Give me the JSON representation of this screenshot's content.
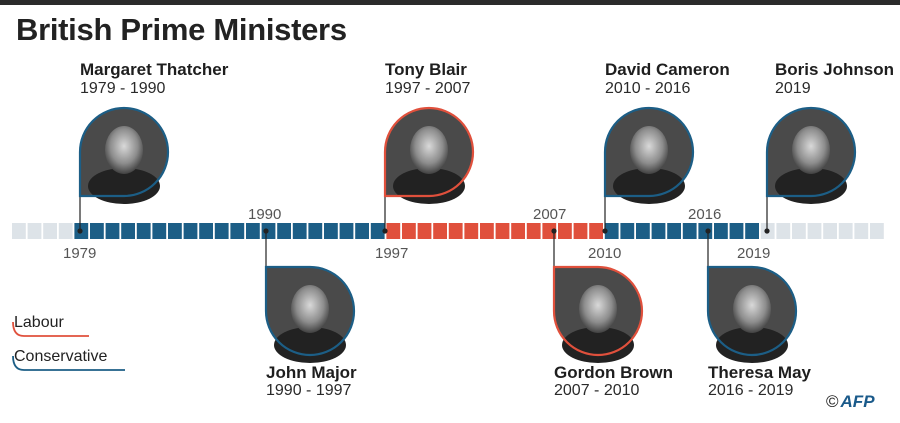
{
  "title": "British Prime Ministers",
  "credit": {
    "symbol": "©",
    "agency": "AFP"
  },
  "colors": {
    "labour": "#e0503c",
    "conservative": "#1c5e86",
    "empty": "#dde3e8",
    "title_bar": "#2b2b2b"
  },
  "legend": [
    {
      "label": "Labour",
      "party": "labour"
    },
    {
      "label": "Conservative",
      "party": "conservative"
    }
  ],
  "prime_ministers": [
    {
      "name": "Margaret Thatcher",
      "years": "1979 - 1990",
      "party": "conservative",
      "start": 1979
    },
    {
      "name": "John Major",
      "years": "1990 - 1997",
      "party": "conservative",
      "start": 1990
    },
    {
      "name": "Tony Blair",
      "years": "1997 - 2007",
      "party": "labour",
      "start": 1997
    },
    {
      "name": "Gordon Brown",
      "years": "2007 - 2010",
      "party": "labour",
      "start": 2007
    },
    {
      "name": "David Cameron",
      "years": "2010 - 2016",
      "party": "conservative",
      "start": 2010
    },
    {
      "name": "Theresa May",
      "years": "2016 - 2019",
      "party": "conservative",
      "start": 2016
    },
    {
      "name": "Boris Johnson",
      "years": "2019",
      "party": "conservative",
      "start": 2019
    }
  ],
  "timeline": {
    "first_year": 1979,
    "last_year": 2019,
    "year_labels": [
      "1979",
      "1990",
      "1997",
      "2007",
      "2010",
      "2016",
      "2019"
    ]
  }
}
